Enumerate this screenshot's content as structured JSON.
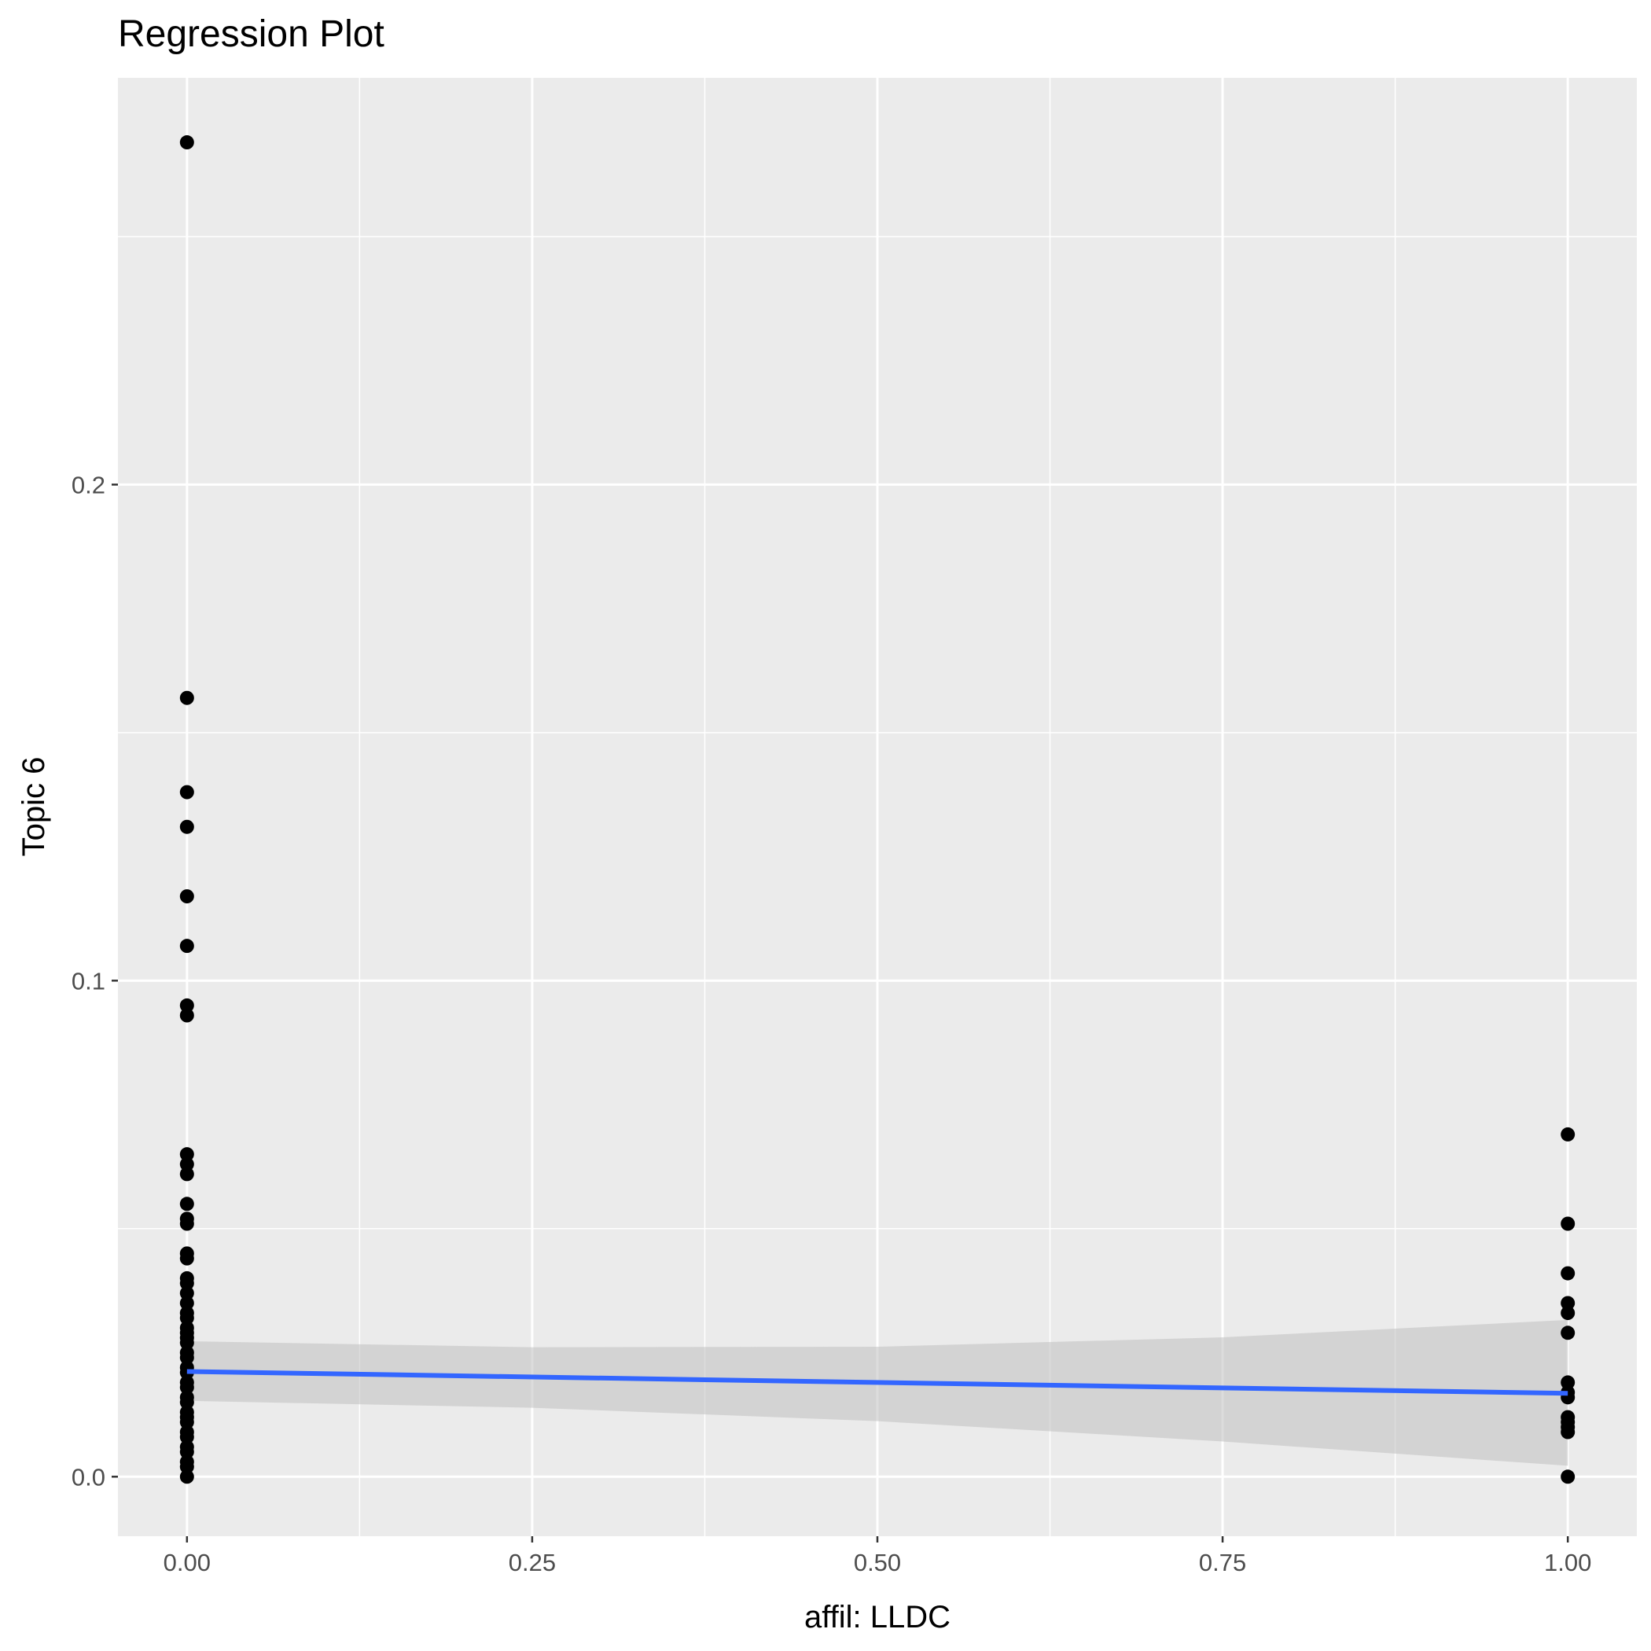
{
  "chart_data": {
    "type": "scatter",
    "title": "Regression Plot",
    "xlabel": "affil: LLDC",
    "ylabel": "Topic 6",
    "xlim": [
      -0.05,
      1.05
    ],
    "ylim": [
      -0.012,
      0.282
    ],
    "x_ticks": [
      0.0,
      0.25,
      0.5,
      0.75,
      1.0
    ],
    "x_tick_labels": [
      "0.00",
      "0.25",
      "0.50",
      "0.75",
      "1.00"
    ],
    "y_ticks": [
      0.0,
      0.1,
      0.2
    ],
    "y_tick_labels": [
      "0.0",
      "0.1",
      "0.2"
    ],
    "grid": true,
    "series": [
      {
        "type": "points",
        "color": "#000000",
        "points": [
          {
            "x": 0,
            "y": 0.269
          },
          {
            "x": 0,
            "y": 0.157
          },
          {
            "x": 0,
            "y": 0.138
          },
          {
            "x": 0,
            "y": 0.131
          },
          {
            "x": 0,
            "y": 0.117
          },
          {
            "x": 0,
            "y": 0.107
          },
          {
            "x": 0,
            "y": 0.095
          },
          {
            "x": 0,
            "y": 0.093
          },
          {
            "x": 0,
            "y": 0.065
          },
          {
            "x": 0,
            "y": 0.063
          },
          {
            "x": 0,
            "y": 0.061
          },
          {
            "x": 0,
            "y": 0.055
          },
          {
            "x": 0,
            "y": 0.052
          },
          {
            "x": 0,
            "y": 0.051
          },
          {
            "x": 0,
            "y": 0.045
          },
          {
            "x": 0,
            "y": 0.044
          },
          {
            "x": 0,
            "y": 0.04
          },
          {
            "x": 0,
            "y": 0.039
          },
          {
            "x": 0,
            "y": 0.037
          },
          {
            "x": 0,
            "y": 0.035
          },
          {
            "x": 0,
            "y": 0.033
          },
          {
            "x": 0,
            "y": 0.032
          },
          {
            "x": 0,
            "y": 0.03
          },
          {
            "x": 0,
            "y": 0.029
          },
          {
            "x": 0,
            "y": 0.028
          },
          {
            "x": 0,
            "y": 0.027
          },
          {
            "x": 0,
            "y": 0.025
          },
          {
            "x": 0,
            "y": 0.024
          },
          {
            "x": 0,
            "y": 0.022
          },
          {
            "x": 0,
            "y": 0.021
          },
          {
            "x": 0,
            "y": 0.019
          },
          {
            "x": 0,
            "y": 0.018
          },
          {
            "x": 0,
            "y": 0.016
          },
          {
            "x": 0,
            "y": 0.015
          },
          {
            "x": 0,
            "y": 0.013
          },
          {
            "x": 0,
            "y": 0.012
          },
          {
            "x": 0,
            "y": 0.011
          },
          {
            "x": 0,
            "y": 0.009
          },
          {
            "x": 0,
            "y": 0.008
          },
          {
            "x": 0,
            "y": 0.006
          },
          {
            "x": 0,
            "y": 0.005
          },
          {
            "x": 0,
            "y": 0.003
          },
          {
            "x": 0,
            "y": 0.002
          },
          {
            "x": 0,
            "y": 0.0
          },
          {
            "x": 1,
            "y": 0.069
          },
          {
            "x": 1,
            "y": 0.051
          },
          {
            "x": 1,
            "y": 0.041
          },
          {
            "x": 1,
            "y": 0.035
          },
          {
            "x": 1,
            "y": 0.033
          },
          {
            "x": 1,
            "y": 0.029
          },
          {
            "x": 1,
            "y": 0.019
          },
          {
            "x": 1,
            "y": 0.017
          },
          {
            "x": 1,
            "y": 0.016
          },
          {
            "x": 1,
            "y": 0.012
          },
          {
            "x": 1,
            "y": 0.011
          },
          {
            "x": 1,
            "y": 0.01
          },
          {
            "x": 1,
            "y": 0.009
          },
          {
            "x": 1,
            "y": 0.0
          }
        ]
      },
      {
        "type": "regression-line",
        "color": "#3366FF",
        "x": [
          0,
          1
        ],
        "y": [
          0.0212,
          0.0168
        ],
        "confidence_band": {
          "color": "#BFBFBF",
          "x": [
            0,
            0.25,
            0.5,
            0.75,
            1
          ],
          "lower": [
            0.0153,
            0.0139,
            0.0112,
            0.0071,
            0.0022
          ],
          "upper": [
            0.0273,
            0.0261,
            0.0262,
            0.0281,
            0.0316
          ]
        }
      }
    ]
  }
}
